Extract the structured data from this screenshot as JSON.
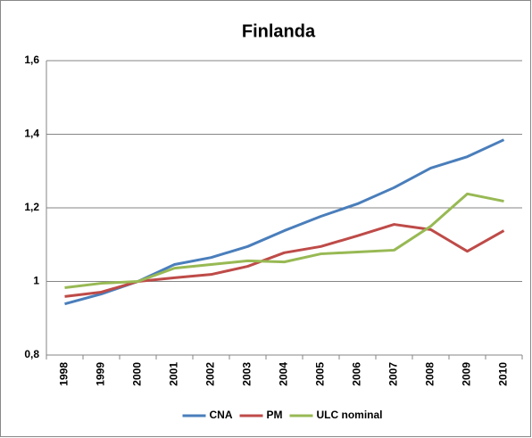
{
  "chart_data": {
    "type": "line",
    "title": "Finlanda",
    "categories": [
      "1998",
      "1999",
      "2000",
      "2001",
      "2002",
      "2003",
      "2004",
      "2005",
      "2006",
      "2007",
      "2008",
      "2009",
      "2010"
    ],
    "series": [
      {
        "name": "CNA",
        "color": "#4a7ebb",
        "values": [
          0.939,
          0.966,
          1.0,
          1.046,
          1.065,
          1.095,
          1.138,
          1.177,
          1.211,
          1.255,
          1.308,
          1.339,
          1.385
        ]
      },
      {
        "name": "PM",
        "color": "#be4b48",
        "values": [
          0.959,
          0.971,
          1.0,
          1.01,
          1.019,
          1.041,
          1.078,
          1.095,
          1.124,
          1.155,
          1.141,
          1.082,
          1.138
        ]
      },
      {
        "name": "ULC nominal",
        "color": "#98b954",
        "values": [
          0.983,
          0.995,
          1.0,
          1.036,
          1.046,
          1.056,
          1.053,
          1.075,
          1.08,
          1.085,
          1.15,
          1.238,
          1.218
        ]
      }
    ],
    "ylim": [
      0.8,
      1.6
    ],
    "yticks": [
      {
        "value": 0.8,
        "label": "0,8"
      },
      1,
      {
        "value": 1.2,
        "label": "1,2"
      },
      {
        "value": 1.4,
        "label": "1,4"
      },
      {
        "value": 1.6,
        "label": "1,6"
      }
    ],
    "grid": true,
    "legend": "bottom"
  }
}
